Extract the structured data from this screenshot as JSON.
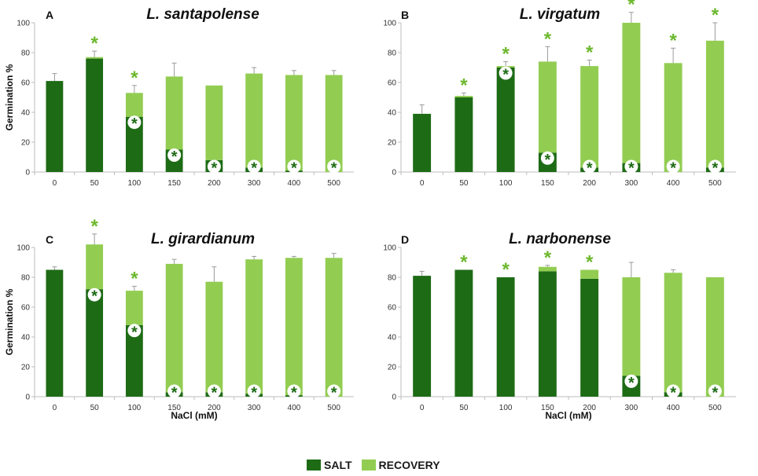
{
  "colors": {
    "salt": "#1e6b16",
    "recovery": "#92cd52",
    "star": "#6cb82e",
    "axis": "#bdbdbd",
    "error": "#9a9a9a"
  },
  "legend": {
    "salt_label": "SALT",
    "recovery_label": "RECOVERY"
  },
  "chart_data": [
    {
      "panel": "A",
      "type": "bar",
      "stacked": true,
      "title": "L. santapolense",
      "xlabel": "",
      "ylabel": "Germination %",
      "ylim": [
        0,
        100
      ],
      "yticks": [
        0,
        20,
        40,
        60,
        80,
        100
      ],
      "categories": [
        "0",
        "50",
        "100",
        "150",
        "200",
        "300",
        "400",
        "500"
      ],
      "series": [
        {
          "name": "SALT",
          "values": [
            61,
            76,
            37,
            15,
            8,
            3,
            1,
            0
          ]
        },
        {
          "name": "RECOVERY",
          "values": [
            0,
            1,
            16,
            49,
            50,
            63,
            64,
            65
          ]
        }
      ],
      "error_bars": [
        5,
        4,
        5,
        9,
        0,
        4,
        3,
        3
      ],
      "stars_above": [
        false,
        true,
        true,
        false,
        false,
        false,
        false,
        false
      ],
      "stars_inside": [
        false,
        false,
        true,
        true,
        true,
        true,
        true,
        true
      ]
    },
    {
      "panel": "B",
      "type": "bar",
      "stacked": true,
      "title": "L. virgatum",
      "xlabel": "",
      "ylabel": "",
      "ylim": [
        0,
        100
      ],
      "yticks": [
        0,
        20,
        40,
        60,
        80,
        100
      ],
      "categories": [
        "0",
        "50",
        "100",
        "150",
        "200",
        "300",
        "400",
        "500"
      ],
      "series": [
        {
          "name": "SALT",
          "values": [
            39,
            50,
            70,
            13,
            3,
            6,
            0,
            3
          ]
        },
        {
          "name": "RECOVERY",
          "values": [
            0,
            1,
            1,
            61,
            68,
            94,
            73,
            85
          ]
        }
      ],
      "error_bars": [
        6,
        2,
        3,
        10,
        4,
        7,
        10,
        12
      ],
      "stars_above": [
        false,
        true,
        true,
        true,
        true,
        true,
        true,
        true
      ],
      "stars_inside": [
        false,
        false,
        true,
        true,
        true,
        true,
        true,
        true
      ]
    },
    {
      "panel": "C",
      "type": "bar",
      "stacked": true,
      "title": "L. girardianum",
      "xlabel": "NaCl (mM)",
      "ylabel": "Germination %",
      "ylim": [
        0,
        100
      ],
      "yticks": [
        0,
        20,
        40,
        60,
        80,
        100
      ],
      "categories": [
        "0",
        "50",
        "100",
        "150",
        "200",
        "300",
        "400",
        "500"
      ],
      "series": [
        {
          "name": "SALT",
          "values": [
            85,
            72,
            48,
            3,
            3,
            2,
            1,
            0
          ]
        },
        {
          "name": "RECOVERY",
          "values": [
            0,
            30,
            23,
            86,
            74,
            90,
            92,
            93
          ]
        }
      ],
      "error_bars": [
        2,
        7,
        3,
        3,
        10,
        2,
        1,
        3
      ],
      "stars_above": [
        false,
        true,
        true,
        false,
        false,
        false,
        false,
        false
      ],
      "stars_inside": [
        false,
        true,
        true,
        true,
        true,
        true,
        true,
        true
      ]
    },
    {
      "panel": "D",
      "type": "bar",
      "stacked": true,
      "title": "L. narbonense",
      "xlabel": "NaCl (mM)",
      "ylabel": "",
      "ylim": [
        0,
        100
      ],
      "yticks": [
        0,
        20,
        40,
        60,
        80,
        100
      ],
      "categories": [
        "0",
        "50",
        "100",
        "150",
        "200",
        "300",
        "400",
        "500"
      ],
      "series": [
        {
          "name": "SALT",
          "values": [
            81,
            85,
            80,
            84,
            79,
            14,
            3,
            0
          ]
        },
        {
          "name": "RECOVERY",
          "values": [
            0,
            0,
            0,
            3,
            6,
            66,
            80,
            80
          ]
        }
      ],
      "error_bars": [
        3,
        0,
        0,
        1,
        0,
        10,
        2,
        0
      ],
      "stars_above": [
        false,
        true,
        true,
        true,
        true,
        false,
        false,
        false
      ],
      "stars_inside": [
        false,
        false,
        false,
        false,
        false,
        true,
        true,
        true
      ]
    }
  ]
}
